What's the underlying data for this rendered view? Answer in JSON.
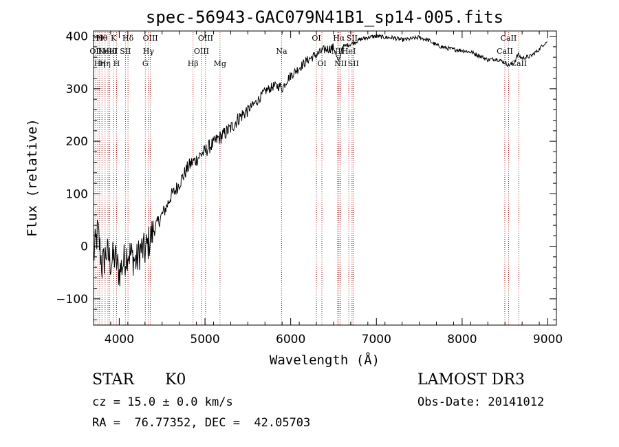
{
  "chart_data": {
    "type": "line",
    "title": "spec-56943-GAC079N41B1_sp14-005.fits",
    "xlabel": "Wavelength (Å)",
    "ylabel": "Flux (relative)",
    "xlim": [
      3700,
      9100
    ],
    "ylim": [
      -150,
      410
    ],
    "x_ticks": [
      4000,
      5000,
      6000,
      7000,
      8000,
      9000
    ],
    "y_ticks": [
      -100,
      0,
      100,
      200,
      300,
      400
    ],
    "grid": false,
    "series": [
      {
        "name": "flux",
        "x": [
          3700,
          3750,
          3800,
          3850,
          3900,
          3950,
          4000,
          4050,
          4100,
          4150,
          4200,
          4250,
          4300,
          4350,
          4400,
          4450,
          4500,
          4550,
          4600,
          4650,
          4700,
          4750,
          4800,
          4850,
          4900,
          4950,
          5000,
          5050,
          5100,
          5150,
          5200,
          5300,
          5400,
          5500,
          5600,
          5700,
          5800,
          5880,
          5900,
          5950,
          6000,
          6100,
          6200,
          6300,
          6400,
          6500,
          6560,
          6580,
          6600,
          6700,
          6800,
          6900,
          7000,
          7100,
          7200,
          7300,
          7400,
          7500,
          7600,
          7700,
          7800,
          7900,
          8000,
          8100,
          8200,
          8300,
          8400,
          8500,
          8540,
          8600,
          8650,
          8700,
          8800,
          8900,
          8950,
          8990
        ],
        "y": [
          -20,
          30,
          -40,
          -10,
          -30,
          -20,
          -50,
          -30,
          -10,
          -20,
          -30,
          -5,
          -10,
          10,
          30,
          45,
          60,
          75,
          95,
          105,
          120,
          135,
          150,
          160,
          165,
          175,
          180,
          190,
          195,
          205,
          210,
          225,
          245,
          260,
          275,
          295,
          305,
          305,
          300,
          315,
          325,
          340,
          355,
          365,
          375,
          378,
          350,
          365,
          380,
          385,
          393,
          398,
          400,
          398,
          397,
          393,
          395,
          398,
          393,
          383,
          378,
          375,
          373,
          370,
          363,
          355,
          357,
          350,
          345,
          348,
          365,
          358,
          362,
          375,
          385,
          390
        ],
        "color": "#000000"
      }
    ],
    "line_annotations": [
      {
        "x": 3726,
        "label": "OII",
        "row": 1
      },
      {
        "x": 3750,
        "label": "Hθ",
        "row": 0
      },
      {
        "x": 3771,
        "label": "Hη",
        "row": 2
      },
      {
        "x": 3798,
        "label": "Hθ",
        "row": 0
      },
      {
        "x": 3835,
        "label": "Hη",
        "row": 2
      },
      {
        "x": 3869,
        "label": "NeIII",
        "row": 1
      },
      {
        "x": 3889,
        "label": "HeI",
        "row": 1
      },
      {
        "x": 3934,
        "label": "K",
        "row": 0
      },
      {
        "x": 3969,
        "label": "H",
        "row": 2
      },
      {
        "x": 4072,
        "label": "SII",
        "row": 1
      },
      {
        "x": 4102,
        "label": "Hδ",
        "row": 0
      },
      {
        "x": 4304,
        "label": "G",
        "row": 2
      },
      {
        "x": 4341,
        "label": "Hγ",
        "row": 1
      },
      {
        "x": 4363,
        "label": "OIII",
        "row": 0
      },
      {
        "x": 4861,
        "label": "Hβ",
        "row": 2
      },
      {
        "x": 4959,
        "label": "OIII",
        "row": 1
      },
      {
        "x": 5007,
        "label": "OIII",
        "row": 0
      },
      {
        "x": 5175,
        "label": "Mg",
        "row": 2
      },
      {
        "x": 5894,
        "label": "Na",
        "row": 1
      },
      {
        "x": 6300,
        "label": "OI",
        "row": 0
      },
      {
        "x": 6364,
        "label": "OI",
        "row": 2
      },
      {
        "x": 6548,
        "label": "NII",
        "row": 1
      },
      {
        "x": 6563,
        "label": "Hα",
        "row": 0
      },
      {
        "x": 6583,
        "label": "NII",
        "row": 2
      },
      {
        "x": 6678,
        "label": "HeI",
        "row": 1
      },
      {
        "x": 6716,
        "label": "SII",
        "row": 0
      },
      {
        "x": 6731,
        "label": "SII",
        "row": 2
      },
      {
        "x": 8498,
        "label": "CaII",
        "row": 1
      },
      {
        "x": 8542,
        "label": "CaII",
        "row": 0
      },
      {
        "x": 8662,
        "label": "CaII",
        "row": 2
      }
    ]
  },
  "info": {
    "object_class": "STAR",
    "subclass": "K0",
    "survey": "LAMOST DR3",
    "redshift_text": "cz = 15.0 ± 0.0 km/s",
    "obs_date": "Obs-Date: 20141012",
    "coords": "RA =  76.77352, DEC =  42.05703"
  }
}
